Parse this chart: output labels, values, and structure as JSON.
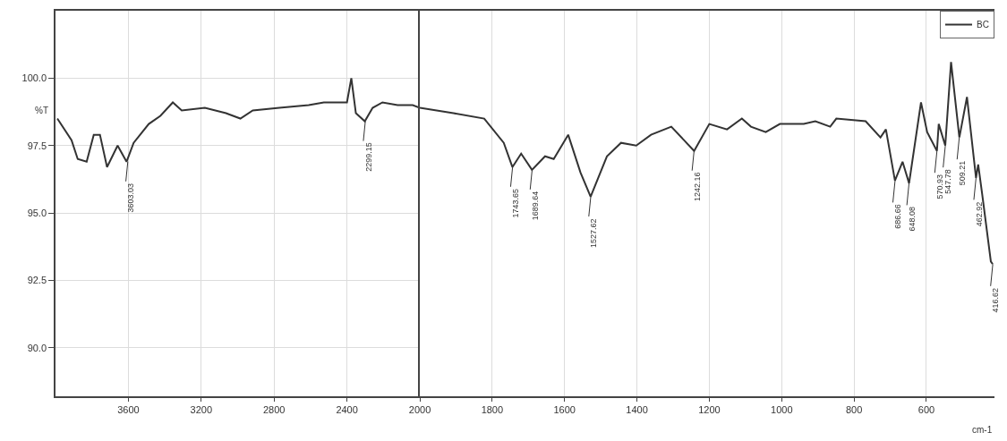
{
  "chart_data": [
    {
      "type": "line",
      "ylabel": "%T",
      "xlim": [
        4000,
        2000
      ],
      "xticks": [
        3600,
        3200,
        2800,
        2400,
        2000
      ],
      "ylim": [
        88.2,
        102.5
      ],
      "yticks": [
        {
          "value": 90,
          "label": "90.0"
        },
        {
          "value": 92.5,
          "label": "92.5"
        },
        {
          "value": 95,
          "label": "95.0"
        },
        {
          "value": 97.5,
          "label": "97.5"
        },
        {
          "value": 100,
          "label": "100.0"
        }
      ],
      "grid": true,
      "line_style": "solid",
      "marker": "none",
      "annotations": [
        {
          "text": "3603.03",
          "x": 3603.03,
          "y": 96.9
        },
        {
          "text": "2299.15",
          "x": 2299.15,
          "y": 98.4
        }
      ],
      "series": [
        {
          "color": "#333333",
          "x": [
            3990,
            3912,
            3878,
            3829,
            3790,
            3756,
            3717,
            3659,
            3610,
            3571,
            3488,
            3424,
            3356,
            3307,
            3180,
            3064,
            2985,
            2917,
            2771,
            2610,
            2527,
            2400,
            2376,
            2351,
            2302,
            2259,
            2205,
            2122,
            2039,
            2000
          ],
          "values": [
            98.5,
            97.7,
            97.0,
            96.9,
            97.9,
            97.9,
            96.7,
            97.5,
            96.9,
            97.6,
            98.3,
            98.6,
            99.1,
            98.8,
            98.9,
            98.7,
            98.5,
            98.8,
            98.9,
            99.0,
            99.1,
            99.1,
            100.0,
            98.7,
            98.4,
            98.9,
            99.1,
            99.0,
            99.0,
            98.9
          ]
        }
      ]
    },
    {
      "type": "line",
      "xlabel": "cm-1",
      "xlim": [
        2000,
        412
      ],
      "xticks": [
        1800,
        1600,
        1400,
        1200,
        1000,
        800,
        600
      ],
      "ylim": [
        88.2,
        102.5
      ],
      "tick_labels": "x",
      "grid": true,
      "legend": "top right",
      "line_style": "solid",
      "marker": "none",
      "annotations": [
        {
          "text": "1743.65",
          "x": 1743.65,
          "y": 96.7
        },
        {
          "text": "1689.64",
          "x": 1689.64,
          "y": 96.6
        },
        {
          "text": "1527.62",
          "x": 1527.62,
          "y": 95.6
        },
        {
          "text": "1242.16",
          "x": 1242.16,
          "y": 97.3
        },
        {
          "text": "686.66",
          "x": 686.66,
          "y": 96.2
        },
        {
          "text": "648.08",
          "x": 648.08,
          "y": 96.1
        },
        {
          "text": "570.93",
          "x": 570.93,
          "y": 97.3
        },
        {
          "text": "547.78",
          "x": 547.78,
          "y": 97.5
        },
        {
          "text": "509.21",
          "x": 509.21,
          "y": 97.8
        },
        {
          "text": "462.92",
          "x": 462.92,
          "y": 96.3
        },
        {
          "text": "416.62",
          "x": 416.62,
          "y": 93.1
        }
      ],
      "series": [
        {
          "name": "BC",
          "color": "#333333",
          "x": [
            2000,
            1907,
            1822,
            1768,
            1744,
            1720,
            1690,
            1654,
            1630,
            1590,
            1556,
            1528,
            1483,
            1444,
            1402,
            1361,
            1305,
            1242,
            1200,
            1151,
            1110,
            1085,
            1044,
            1005,
            939,
            907,
            866,
            849,
            768,
            727,
            712,
            687,
            666,
            648,
            615,
            598,
            571,
            566,
            548,
            532,
            509,
            488,
            463,
            457,
            446,
            422,
            417
          ],
          "values": [
            98.9,
            98.7,
            98.5,
            97.6,
            96.7,
            97.2,
            96.6,
            97.1,
            97.0,
            97.9,
            96.5,
            95.6,
            97.1,
            97.6,
            97.5,
            97.9,
            98.2,
            97.3,
            98.3,
            98.1,
            98.5,
            98.2,
            98.0,
            98.3,
            98.3,
            98.4,
            98.2,
            98.5,
            98.4,
            97.8,
            98.1,
            96.2,
            96.9,
            96.1,
            99.1,
            98.0,
            97.3,
            98.3,
            97.5,
            100.6,
            97.8,
            99.3,
            96.3,
            96.8,
            95.7,
            93.2,
            93.1
          ]
        }
      ]
    }
  ]
}
